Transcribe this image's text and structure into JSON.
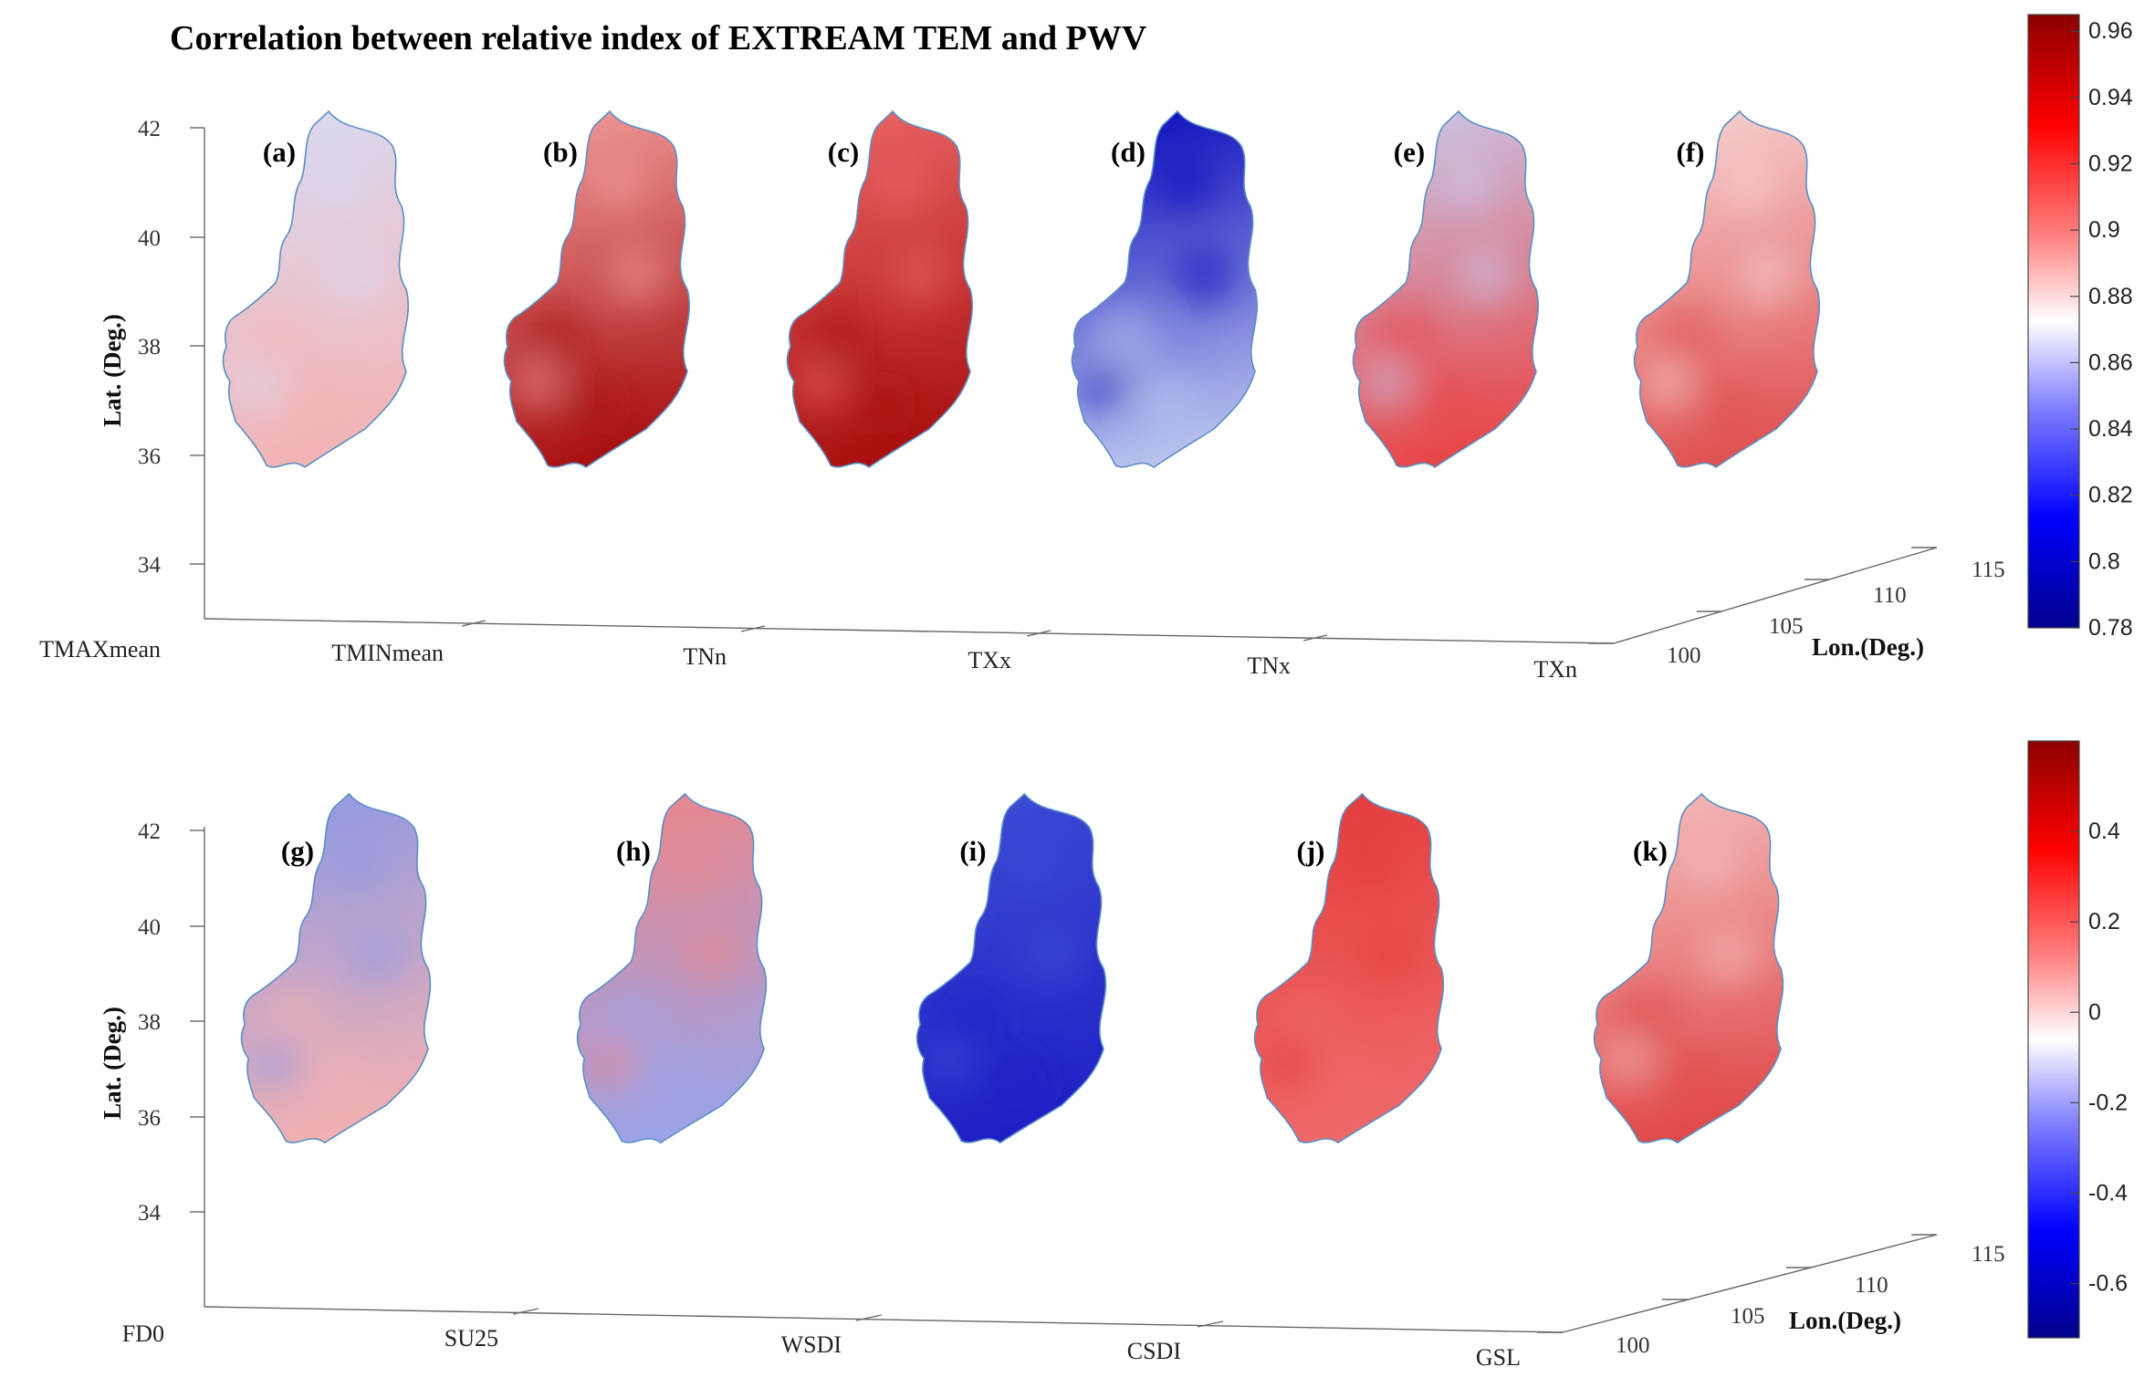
{
  "title": "Correlation between relative index of EXTREAM TEM and PWV",
  "axes": {
    "lat_label": "Lat. (Deg.)",
    "lon_label": "Lon.(Deg.)",
    "lat_ticks": [
      "42",
      "40",
      "38",
      "36",
      "34"
    ],
    "lon_ticks": [
      "100",
      "105",
      "110",
      "115"
    ]
  },
  "chart_data": [
    {
      "type": "heatmap",
      "panel_group": "top",
      "index_axis": [
        "TMAXmean",
        "TMINmean",
        "TNn",
        "TXx",
        "TNx",
        "TXn"
      ],
      "panels": [
        {
          "label": "(a)",
          "index": "TMAXmean",
          "north_color": "#d8ddf5",
          "south_color": "#f4b3b3"
        },
        {
          "label": "(b)",
          "index": "TMINmean",
          "north_color": "#f4a3a3",
          "south_color": "#a80f0f"
        },
        {
          "label": "(c)",
          "index": "TNn",
          "north_color": "#ef6a6a",
          "south_color": "#a80f0f"
        },
        {
          "label": "(d)",
          "index": "TXx",
          "north_color": "#0000b8",
          "south_color": "#bcc6ef"
        },
        {
          "label": "(e)",
          "index": "TNx",
          "north_color": "#c8cdf2",
          "south_color": "#e84545"
        },
        {
          "label": "(f)",
          "index": "TXn",
          "north_color": "#f8d9d9",
          "south_color": "#e05050"
        }
      ],
      "colorbar": {
        "min": 0.78,
        "max": 0.965,
        "ticks": [
          "0.96",
          "0.94",
          "0.92",
          "0.9",
          "0.88",
          "0.86",
          "0.84",
          "0.82",
          "0.8",
          "0.78"
        ]
      },
      "lat_range": [
        34,
        42
      ],
      "lon_range": [
        100,
        115
      ]
    },
    {
      "type": "heatmap",
      "panel_group": "bottom",
      "index_axis": [
        "FD0",
        "SU25",
        "WSDI",
        "CSDI",
        "GSL"
      ],
      "panels": [
        {
          "label": "(g)",
          "index": "FD0",
          "north_color": "#8a98e6",
          "south_color": "#f3b1b1"
        },
        {
          "label": "(h)",
          "index": "SU25",
          "north_color": "#f08585",
          "south_color": "#9aa4ea"
        },
        {
          "label": "(i)",
          "index": "WSDI",
          "north_color": "#3f4fd6",
          "south_color": "#1f1fc4"
        },
        {
          "label": "(j)",
          "index": "CSDI",
          "north_color": "#e33a3a",
          "south_color": "#ef6a6a"
        },
        {
          "label": "(k)",
          "index": "GSL",
          "north_color": "#f5c2c2",
          "south_color": "#e04848"
        }
      ],
      "colorbar": {
        "min": -0.72,
        "max": 0.6,
        "ticks": [
          "0.4",
          "0.2",
          "0",
          "-0.2",
          "-0.4",
          "-0.6"
        ]
      },
      "lat_range": [
        34,
        42
      ],
      "lon_range": [
        100,
        115
      ]
    }
  ],
  "colormap": [
    "#00008b",
    "#0000ff",
    "#8080ff",
    "#ffffff",
    "#ff8080",
    "#ff0000",
    "#8b0000"
  ]
}
